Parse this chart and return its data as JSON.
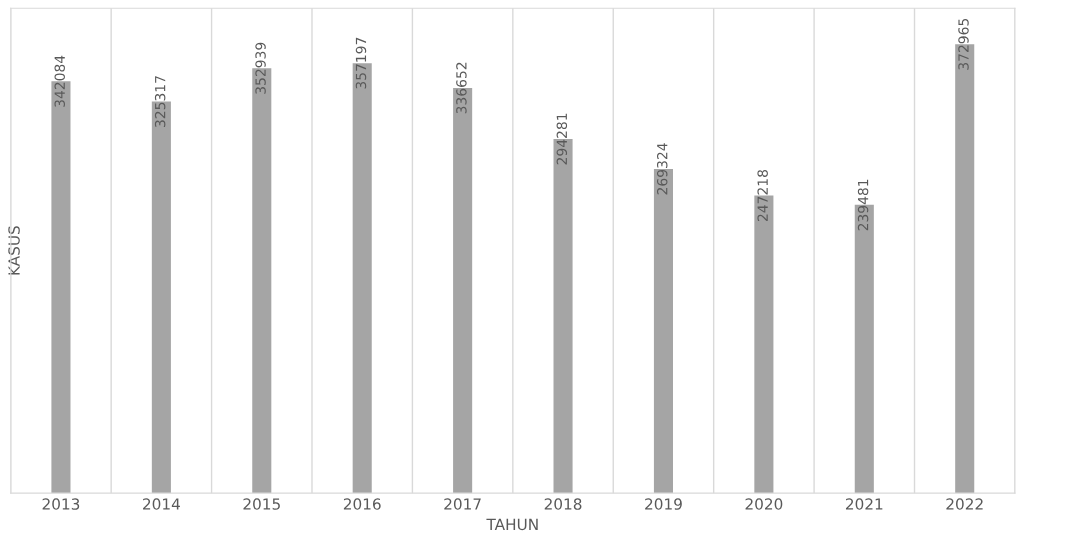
{
  "chart_data": {
    "type": "bar",
    "xlabel": "TAHUN",
    "ylabel": "KASUS",
    "categories": [
      "2013",
      "2014",
      "2015",
      "2016",
      "2017",
      "2018",
      "2019",
      "2020",
      "2021",
      "2022"
    ],
    "values": [
      342084,
      325317,
      352939,
      357197,
      336652,
      294281,
      269324,
      247218,
      239481,
      372965
    ],
    "color": "#a5a5a5",
    "data_labels": true,
    "grid": "x",
    "tick_labels": "x"
  }
}
